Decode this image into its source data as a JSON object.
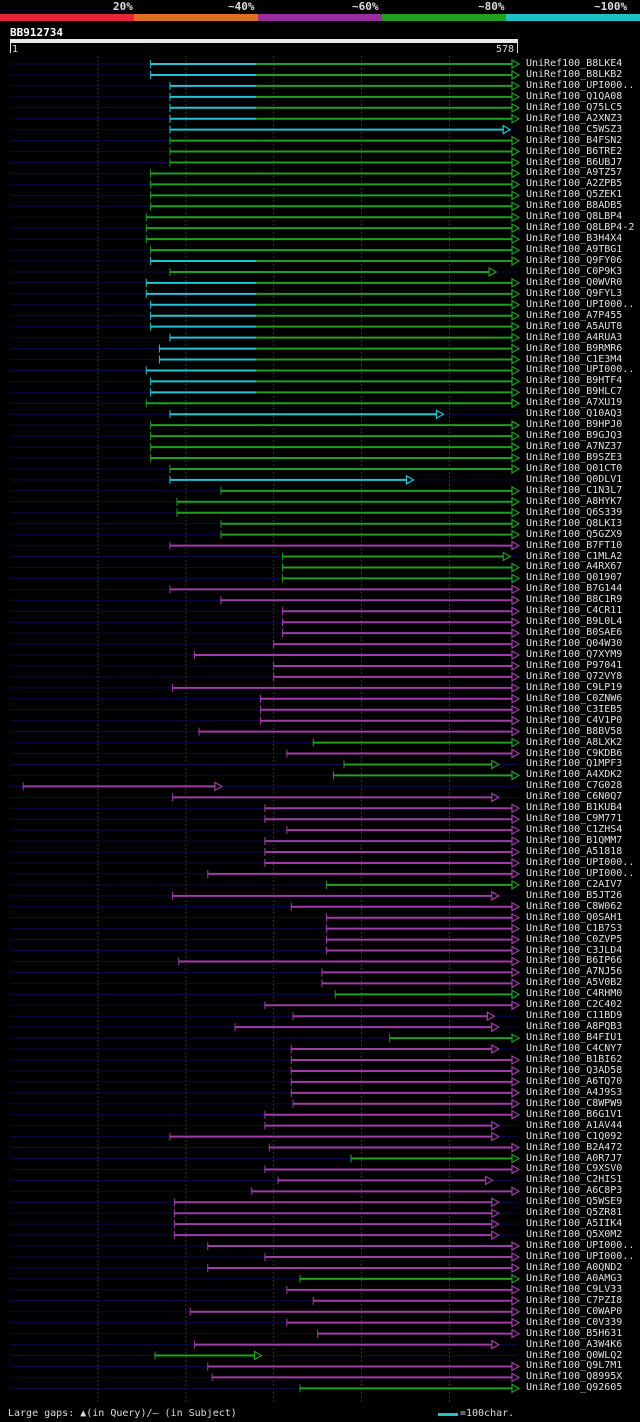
{
  "legend": [
    {
      "label": "20%",
      "color": "#e8263a"
    },
    {
      "label": "~40%",
      "color": "#e07020"
    },
    {
      "label": "~60%",
      "color": "#9a2e9c"
    },
    {
      "label": "~80%",
      "color": "#1ea020"
    },
    {
      "label": "~100%",
      "color": "#20c0c8"
    }
  ],
  "query": {
    "id": "BB912734",
    "start": "1",
    "end": "578"
  },
  "footer": {
    "gaps_text": "Large gaps: ▲(in Query)/– (in Subject)",
    "scale_text": "=100char."
  },
  "colors": {
    "cyan": "#22c4d4",
    "green": "#1ea020",
    "purple": "#a03ca8",
    "background": "#000000",
    "track": "#0a0a4a",
    "grid": "#333333"
  },
  "chart_data": {
    "type": "alignment",
    "query_length": 578,
    "categories": {
      "C": "~100%",
      "G": "~80%",
      "P": "~60%"
    },
    "hits": [
      {
        "id": "UniRef100_B8LKE4",
        "start": 160,
        "end": 578,
        "cat": "C",
        "split": 280
      },
      {
        "id": "UniRef100_B8LKB2",
        "start": 160,
        "end": 578,
        "cat": "C",
        "split": 280
      },
      {
        "id": "UniRef100_UPI000..",
        "start": 182,
        "end": 578,
        "cat": "C",
        "split": 280
      },
      {
        "id": "UniRef100_Q1QA08",
        "start": 182,
        "end": 578,
        "cat": "C",
        "split": 280
      },
      {
        "id": "UniRef100_Q75LC5",
        "start": 182,
        "end": 578,
        "cat": "C",
        "split": 280
      },
      {
        "id": "UniRef100_A2XNZ3",
        "start": 182,
        "end": 578,
        "cat": "C",
        "split": 280
      },
      {
        "id": "UniRef100_C5WSZ3",
        "start": 182,
        "end": 568,
        "cat": "C",
        "split": 568
      },
      {
        "id": "UniRef100_B4FSN2",
        "start": 182,
        "end": 578,
        "cat": "G",
        "split": 280
      },
      {
        "id": "UniRef100_B6TRE2",
        "start": 182,
        "end": 578,
        "cat": "G",
        "split": 280
      },
      {
        "id": "UniRef100_B6UBJ7",
        "start": 182,
        "end": 578,
        "cat": "G",
        "split": 280
      },
      {
        "id": "UniRef100_A9TZ57",
        "start": 160,
        "end": 578,
        "cat": "G",
        "split": 0
      },
      {
        "id": "UniRef100_A2ZPB5",
        "start": 160,
        "end": 578,
        "cat": "G",
        "split": 0
      },
      {
        "id": "UniRef100_Q5ZEK1",
        "start": 160,
        "end": 578,
        "cat": "G",
        "split": 0
      },
      {
        "id": "UniRef100_B8ADB5",
        "start": 160,
        "end": 578,
        "cat": "G",
        "split": 0
      },
      {
        "id": "UniRef100_Q8LBP4",
        "start": 155,
        "end": 578,
        "cat": "G",
        "split": 0
      },
      {
        "id": "UniRef100_Q8LBP4-2",
        "start": 155,
        "end": 578,
        "cat": "G",
        "split": 0
      },
      {
        "id": "UniRef100_B3H4X4",
        "start": 155,
        "end": 578,
        "cat": "G",
        "split": 0
      },
      {
        "id": "UniRef100_A9TBG1",
        "start": 160,
        "end": 578,
        "cat": "G",
        "split": 0
      },
      {
        "id": "UniRef100_Q9FY06",
        "start": 160,
        "end": 578,
        "cat": "C",
        "split": 280
      },
      {
        "id": "UniRef100_C0P9K3",
        "start": 182,
        "end": 552,
        "cat": "G",
        "split": 0
      },
      {
        "id": "UniRef100_Q0WVR0",
        "start": 155,
        "end": 578,
        "cat": "C",
        "split": 280
      },
      {
        "id": "UniRef100_Q9FYL3",
        "start": 155,
        "end": 578,
        "cat": "C",
        "split": 280
      },
      {
        "id": "UniRef100_UPI000..",
        "start": 160,
        "end": 578,
        "cat": "C",
        "split": 280
      },
      {
        "id": "UniRef100_A7P455",
        "start": 160,
        "end": 578,
        "cat": "C",
        "split": 280
      },
      {
        "id": "UniRef100_A5AUT8",
        "start": 160,
        "end": 578,
        "cat": "C",
        "split": 280
      },
      {
        "id": "UniRef100_A4RUA3",
        "start": 182,
        "end": 578,
        "cat": "C",
        "split": 280
      },
      {
        "id": "UniRef100_B9RMR6",
        "start": 170,
        "end": 578,
        "cat": "C",
        "split": 280
      },
      {
        "id": "UniRef100_C1E3M4",
        "start": 170,
        "end": 578,
        "cat": "C",
        "split": 280
      },
      {
        "id": "UniRef100_UPI000..",
        "start": 155,
        "end": 578,
        "cat": "C",
        "split": 280
      },
      {
        "id": "UniRef100_B9HTF4",
        "start": 160,
        "end": 578,
        "cat": "C",
        "split": 280
      },
      {
        "id": "UniRef100_B9HLC7",
        "start": 160,
        "end": 578,
        "cat": "C",
        "split": 280
      },
      {
        "id": "UniRef100_A7XU19",
        "start": 155,
        "end": 578,
        "cat": "G",
        "split": 0
      },
      {
        "id": "UniRef100_Q10AQ3",
        "start": 182,
        "end": 492,
        "cat": "C",
        "split": 492
      },
      {
        "id": "UniRef100_B9HPJ0",
        "start": 160,
        "end": 578,
        "cat": "G",
        "split": 280
      },
      {
        "id": "UniRef100_B9GJQ3",
        "start": 160,
        "end": 578,
        "cat": "G",
        "split": 0
      },
      {
        "id": "UniRef100_A7NZ37",
        "start": 160,
        "end": 578,
        "cat": "G",
        "split": 0
      },
      {
        "id": "UniRef100_B9SZE3",
        "start": 160,
        "end": 578,
        "cat": "G",
        "split": 0
      },
      {
        "id": "UniRef100_Q01CT0",
        "start": 182,
        "end": 578,
        "cat": "G",
        "split": 280
      },
      {
        "id": "UniRef100_Q0DLV1",
        "start": 182,
        "end": 458,
        "cat": "C",
        "split": 458
      },
      {
        "id": "UniRef100_C1N3L7",
        "start": 240,
        "end": 578,
        "cat": "G",
        "split": 0
      },
      {
        "id": "UniRef100_A8HYK7",
        "start": 190,
        "end": 578,
        "cat": "G",
        "split": 0
      },
      {
        "id": "UniRef100_Q6S339",
        "start": 190,
        "end": 578,
        "cat": "G",
        "split": 0
      },
      {
        "id": "UniRef100_Q8LKI3",
        "start": 240,
        "end": 578,
        "cat": "G",
        "split": 0
      },
      {
        "id": "UniRef100_Q5GZX9",
        "start": 240,
        "end": 578,
        "cat": "G",
        "split": 0
      },
      {
        "id": "UniRef100_B7FT10",
        "start": 182,
        "end": 578,
        "cat": "P",
        "split": 0
      },
      {
        "id": "UniRef100_C1MLA2",
        "start": 310,
        "end": 568,
        "cat": "G",
        "split": 0
      },
      {
        "id": "UniRef100_A4RX67",
        "start": 310,
        "end": 578,
        "cat": "G",
        "split": 0
      },
      {
        "id": "UniRef100_Q01907",
        "start": 310,
        "end": 578,
        "cat": "G",
        "split": 0
      },
      {
        "id": "UniRef100_B7G144",
        "start": 182,
        "end": 578,
        "cat": "P",
        "split": 0
      },
      {
        "id": "UniRef100_B8C1R9",
        "start": 240,
        "end": 578,
        "cat": "P",
        "split": 0
      },
      {
        "id": "UniRef100_C4CR11",
        "start": 310,
        "end": 578,
        "cat": "P",
        "split": 0
      },
      {
        "id": "UniRef100_B9L0L4",
        "start": 310,
        "end": 578,
        "cat": "P",
        "split": 0
      },
      {
        "id": "UniRef100_B0SAE6",
        "start": 310,
        "end": 578,
        "cat": "P",
        "split": 0
      },
      {
        "id": "UniRef100_Q04W30",
        "start": 300,
        "end": 578,
        "cat": "P",
        "split": 0
      },
      {
        "id": "UniRef100_Q7XYM9",
        "start": 210,
        "end": 578,
        "cat": "P",
        "split": 0
      },
      {
        "id": "UniRef100_P97041",
        "start": 300,
        "end": 578,
        "cat": "P",
        "split": 0
      },
      {
        "id": "UniRef100_Q72VY8",
        "start": 300,
        "end": 578,
        "cat": "P",
        "split": 0
      },
      {
        "id": "UniRef100_C9LP19",
        "start": 185,
        "end": 578,
        "cat": "P",
        "split": 0
      },
      {
        "id": "UniRef100_C0ZNW6",
        "start": 285,
        "end": 578,
        "cat": "P",
        "split": 0
      },
      {
        "id": "UniRef100_C3IEB5",
        "start": 285,
        "end": 578,
        "cat": "P",
        "split": 0
      },
      {
        "id": "UniRef100_C4V1P0",
        "start": 285,
        "end": 578,
        "cat": "P",
        "split": 0
      },
      {
        "id": "UniRef100_B8BV58",
        "start": 215,
        "end": 578,
        "cat": "P",
        "split": 0
      },
      {
        "id": "UniRef100_A8LXK2",
        "start": 345,
        "end": 578,
        "cat": "G",
        "split": 0
      },
      {
        "id": "UniRef100_C9KDB6",
        "start": 315,
        "end": 578,
        "cat": "P",
        "split": 0
      },
      {
        "id": "UniRef100_Q1MPF3",
        "start": 380,
        "end": 555,
        "cat": "G",
        "split": 0
      },
      {
        "id": "UniRef100_A4XDK2",
        "start": 368,
        "end": 578,
        "cat": "G",
        "split": 0
      },
      {
        "id": "UniRef100_C7G028",
        "start": 15,
        "end": 240,
        "cat": "P",
        "split": 0
      },
      {
        "id": "UniRef100_C6N0Q7",
        "start": 185,
        "end": 555,
        "cat": "P",
        "split": 0
      },
      {
        "id": "UniRef100_B1KUB4",
        "start": 290,
        "end": 578,
        "cat": "P",
        "split": 0
      },
      {
        "id": "UniRef100_C9M771",
        "start": 290,
        "end": 578,
        "cat": "P",
        "split": 0
      },
      {
        "id": "UniRef100_C1ZHS4",
        "start": 315,
        "end": 578,
        "cat": "P",
        "split": 0
      },
      {
        "id": "UniRef100_B1QMM7",
        "start": 290,
        "end": 578,
        "cat": "P",
        "split": 0
      },
      {
        "id": "UniRef100_A51818",
        "start": 290,
        "end": 578,
        "cat": "P",
        "split": 0
      },
      {
        "id": "UniRef100_UPI000..",
        "start": 290,
        "end": 578,
        "cat": "P",
        "split": 0
      },
      {
        "id": "UniRef100_UPI000..",
        "start": 225,
        "end": 578,
        "cat": "P",
        "split": 0
      },
      {
        "id": "UniRef100_C2AIV7",
        "start": 360,
        "end": 578,
        "cat": "G",
        "split": 0
      },
      {
        "id": "UniRef100_B5JT26",
        "start": 185,
        "end": 555,
        "cat": "P",
        "split": 0
      },
      {
        "id": "UniRef100_C8W062",
        "start": 320,
        "end": 578,
        "cat": "P",
        "split": 0
      },
      {
        "id": "UniRef100_Q0SAH1",
        "start": 360,
        "end": 578,
        "cat": "P",
        "split": 0
      },
      {
        "id": "UniRef100_C1B7S3",
        "start": 360,
        "end": 578,
        "cat": "P",
        "split": 0
      },
      {
        "id": "UniRef100_C0ZVP5",
        "start": 360,
        "end": 578,
        "cat": "P",
        "split": 0
      },
      {
        "id": "UniRef100_C3JLD4",
        "start": 360,
        "end": 578,
        "cat": "P",
        "split": 0
      },
      {
        "id": "UniRef100_B6IP66",
        "start": 192,
        "end": 578,
        "cat": "P",
        "split": 0
      },
      {
        "id": "UniRef100_A7NJ56",
        "start": 355,
        "end": 578,
        "cat": "P",
        "split": 0
      },
      {
        "id": "UniRef100_A5V0B2",
        "start": 355,
        "end": 578,
        "cat": "P",
        "split": 0
      },
      {
        "id": "UniRef100_C4RHM0",
        "start": 370,
        "end": 578,
        "cat": "G",
        "split": 0
      },
      {
        "id": "UniRef100_C2C402",
        "start": 290,
        "end": 578,
        "cat": "P",
        "split": 0
      },
      {
        "id": "UniRef100_C11BD9",
        "start": 322,
        "end": 550,
        "cat": "P",
        "split": 0
      },
      {
        "id": "UniRef100_A8PQB3",
        "start": 256,
        "end": 555,
        "cat": "P",
        "split": 0
      },
      {
        "id": "UniRef100_B4FIU1",
        "start": 432,
        "end": 578,
        "cat": "G",
        "split": 0
      },
      {
        "id": "UniRef100_C4CNY7",
        "start": 320,
        "end": 555,
        "cat": "P",
        "split": 0
      },
      {
        "id": "UniRef100_B1BI62",
        "start": 320,
        "end": 578,
        "cat": "P",
        "split": 0
      },
      {
        "id": "UniRef100_Q3AD58",
        "start": 320,
        "end": 578,
        "cat": "P",
        "split": 0
      },
      {
        "id": "UniRef100_A6TQ70",
        "start": 320,
        "end": 578,
        "cat": "P",
        "split": 0
      },
      {
        "id": "UniRef100_A4J9S3",
        "start": 320,
        "end": 578,
        "cat": "P",
        "split": 0
      },
      {
        "id": "UniRef100_C8WPW9",
        "start": 322,
        "end": 578,
        "cat": "P",
        "split": 0
      },
      {
        "id": "UniRef100_B6G1V1",
        "start": 290,
        "end": 578,
        "cat": "P",
        "split": 0
      },
      {
        "id": "UniRef100_A1AV44",
        "start": 290,
        "end": 555,
        "cat": "P",
        "split": 0
      },
      {
        "id": "UniRef100_C1Q092",
        "start": 182,
        "end": 555,
        "cat": "P",
        "split": 280
      },
      {
        "id": "UniRef100_B2A472",
        "start": 295,
        "end": 578,
        "cat": "P",
        "split": 0
      },
      {
        "id": "UniRef100_A0R7J7",
        "start": 388,
        "end": 578,
        "cat": "G",
        "split": 0
      },
      {
        "id": "UniRef100_C9XSV0",
        "start": 290,
        "end": 578,
        "cat": "P",
        "split": 0
      },
      {
        "id": "UniRef100_C2HIS1",
        "start": 305,
        "end": 548,
        "cat": "P",
        "split": 0
      },
      {
        "id": "UniRef100_A6C8P3",
        "start": 275,
        "end": 578,
        "cat": "P",
        "split": 0
      },
      {
        "id": "UniRef100_Q5WSE9",
        "start": 187,
        "end": 555,
        "cat": "P",
        "split": 0
      },
      {
        "id": "UniRef100_Q5ZR81",
        "start": 187,
        "end": 555,
        "cat": "P",
        "split": 0
      },
      {
        "id": "UniRef100_A5IIK4",
        "start": 187,
        "end": 555,
        "cat": "P",
        "split": 0
      },
      {
        "id": "UniRef100_Q5X0M2",
        "start": 187,
        "end": 555,
        "cat": "P",
        "split": 0
      },
      {
        "id": "UniRef100_UPI000..",
        "start": 225,
        "end": 578,
        "cat": "P",
        "split": 0
      },
      {
        "id": "UniRef100_UPI000..",
        "start": 290,
        "end": 578,
        "cat": "P",
        "split": 0
      },
      {
        "id": "UniRef100_A0QND2",
        "start": 225,
        "end": 578,
        "cat": "P",
        "split": 0
      },
      {
        "id": "UniRef100_A0AMG3",
        "start": 330,
        "end": 578,
        "cat": "G",
        "split": 0
      },
      {
        "id": "UniRef100_C9LV33",
        "start": 315,
        "end": 578,
        "cat": "P",
        "split": 0
      },
      {
        "id": "UniRef100_C7PZI8",
        "start": 345,
        "end": 578,
        "cat": "P",
        "split": 0
      },
      {
        "id": "UniRef100_C0WAP0",
        "start": 205,
        "end": 578,
        "cat": "P",
        "split": 0
      },
      {
        "id": "UniRef100_C0V339",
        "start": 315,
        "end": 578,
        "cat": "P",
        "split": 0
      },
      {
        "id": "UniRef100_B5H631",
        "start": 350,
        "end": 578,
        "cat": "P",
        "split": 0
      },
      {
        "id": "UniRef100_A3W4K6",
        "start": 210,
        "end": 555,
        "cat": "P",
        "split": 0
      },
      {
        "id": "UniRef100_Q0WLQ2",
        "start": 165,
        "end": 285,
        "cat": "G",
        "split": 0
      },
      {
        "id": "UniRef100_Q9L7M1",
        "start": 225,
        "end": 578,
        "cat": "P",
        "split": 0
      },
      {
        "id": "UniRef100_Q8995X",
        "start": 230,
        "end": 578,
        "cat": "P",
        "split": 0
      },
      {
        "id": "UniRef100_Q92605",
        "start": 330,
        "end": 578,
        "cat": "G",
        "split": 0
      }
    ]
  }
}
